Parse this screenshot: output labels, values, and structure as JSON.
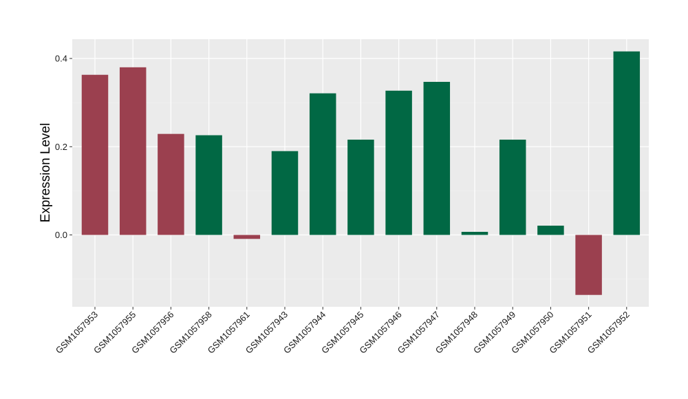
{
  "chart_data": {
    "type": "bar",
    "xlabel": "",
    "ylabel": "Expression Level",
    "ylim": [
      -0.16,
      0.43
    ],
    "yticks": [
      0.0,
      0.2,
      0.4
    ],
    "ytick_labels": [
      "0.0",
      "0.2",
      "0.4"
    ],
    "grid": true,
    "background": "#ebebeb",
    "colors": {
      "group_a": "#9b404f",
      "group_b": "#016844"
    },
    "categories": [
      "GSM1057953",
      "GSM1057955",
      "GSM1057956",
      "GSM1057958",
      "GSM1057961",
      "GSM1057943",
      "GSM1057944",
      "GSM1057945",
      "GSM1057946",
      "GSM1057947",
      "GSM1057948",
      "GSM1057949",
      "GSM1057950",
      "GSM1057951",
      "GSM1057952"
    ],
    "values": [
      0.363,
      0.38,
      0.229,
      0.226,
      -0.009,
      0.19,
      0.321,
      0.216,
      0.327,
      0.347,
      0.007,
      0.216,
      0.021,
      -0.136,
      0.416
    ],
    "groups": [
      "a",
      "a",
      "a",
      "b",
      "a",
      "b",
      "b",
      "b",
      "b",
      "b",
      "b",
      "b",
      "b",
      "a",
      "b"
    ]
  }
}
